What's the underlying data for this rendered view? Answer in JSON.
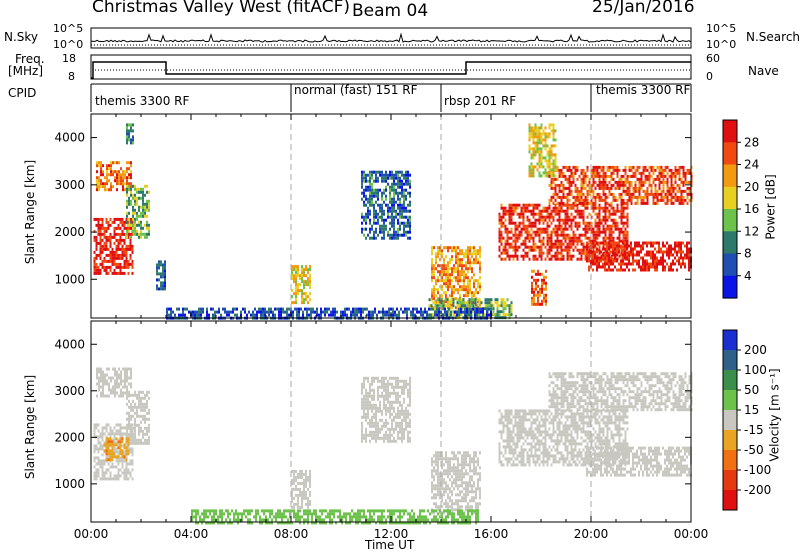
{
  "header": {
    "title": "Christmas Valley West (fitACF)",
    "beam": "Beam 04",
    "date": "25/Jan/2016"
  },
  "nsky": {
    "label": "N.Sky",
    "ticks": [
      "10^5",
      "10^0"
    ],
    "right_label": "N.Search",
    "right_ticks": [
      "10^5",
      "10^0"
    ]
  },
  "freq": {
    "label_line1": "Freq.",
    "label_line2": "[MHz]",
    "ticks": [
      "18",
      "8"
    ],
    "right_label": "Nave",
    "right_ticks": [
      "60",
      "0"
    ]
  },
  "cpid": {
    "label": "CPID",
    "segments": [
      {
        "name": "themis 3300 RF",
        "start_h": 0,
        "end_h": 8
      },
      {
        "name": "normal (fast) 151 RF",
        "start_h": 8,
        "end_h": 14
      },
      {
        "name": "rbsp 201 RF",
        "start_h": 14,
        "end_h": 20
      },
      {
        "name": "themis 3300 RF",
        "start_h": 20,
        "end_h": 24
      }
    ]
  },
  "chart_data": [
    {
      "type": "heatmap",
      "panel": "power",
      "ylabel": "Slant Range [km]",
      "yticks": [
        "1000",
        "2000",
        "3000",
        "4000"
      ],
      "ylim": [
        180,
        4500
      ],
      "xlim": [
        0,
        24
      ],
      "colorbar_label": "Power [dB]",
      "colorbar_ticks": [
        "4",
        "8",
        "12",
        "16",
        "20",
        "24",
        "28"
      ],
      "colorbar_range": [
        0,
        32
      ],
      "colors": [
        "#0a14e6",
        "#1f4fb0",
        "#2e7a6a",
        "#6cc24a",
        "#e8d021",
        "#f29a12",
        "#f04a10",
        "#e01010"
      ],
      "regions": [
        {
          "t0": 0.1,
          "t1": 1.7,
          "r0": 1100,
          "r1": 2300,
          "value": 30
        },
        {
          "t0": 0.2,
          "t1": 1.6,
          "r0": 2900,
          "r1": 3500,
          "value": 24
        },
        {
          "t0": 1.4,
          "t1": 2.3,
          "r0": 1900,
          "r1": 3000,
          "value": 14
        },
        {
          "t0": 1.4,
          "t1": 1.7,
          "r0": 3900,
          "r1": 4300,
          "value": 10
        },
        {
          "t0": 2.6,
          "t1": 3.0,
          "r0": 800,
          "r1": 1400,
          "value": 7
        },
        {
          "t0": 8.0,
          "t1": 8.8,
          "r0": 500,
          "r1": 1300,
          "value": 18
        },
        {
          "t0": 10.8,
          "t1": 12.8,
          "r0": 1900,
          "r1": 3300,
          "value": 7
        },
        {
          "t0": 13.6,
          "t1": 15.6,
          "r0": 400,
          "r1": 1700,
          "value": 22
        },
        {
          "t0": 13.5,
          "t1": 16.8,
          "r0": 200,
          "r1": 600,
          "value": 14
        },
        {
          "t0": 16.3,
          "t1": 21.5,
          "r0": 1400,
          "r1": 2600,
          "value": 29
        },
        {
          "t0": 19.8,
          "t1": 24.0,
          "r0": 1200,
          "r1": 1800,
          "value": 30
        },
        {
          "t0": 18.3,
          "t1": 24.0,
          "r0": 2600,
          "r1": 3400,
          "value": 27
        },
        {
          "t0": 17.5,
          "t1": 18.6,
          "r0": 3200,
          "r1": 4300,
          "value": 18
        },
        {
          "t0": 17.6,
          "t1": 18.2,
          "r0": 500,
          "r1": 1200,
          "value": 26
        },
        {
          "t0": 3.0,
          "t1": 16.0,
          "r0": 180,
          "r1": 400,
          "value": 6
        }
      ]
    },
    {
      "type": "heatmap",
      "panel": "velocity",
      "ylabel": "Slant Range [km]",
      "yticks": [
        "1000",
        "2000",
        "3000",
        "4000"
      ],
      "ylim": [
        180,
        4500
      ],
      "xlim": [
        0,
        24
      ],
      "xticks": [
        "00:00",
        "04:00",
        "08:00",
        "12:00",
        "16:00",
        "20:00",
        "00:00"
      ],
      "xlabel": "Time UT",
      "colorbar_label": "Velocity [m s⁻¹]",
      "colorbar_ticks": [
        "200",
        "100",
        "50",
        "15",
        "-15",
        "-50",
        "-100",
        "-200"
      ],
      "colors": [
        "#1a2fd0",
        "#2f5f8a",
        "#3c8f4a",
        "#6cc24a",
        "#c8c8c0",
        "#e8a521",
        "#f07012",
        "#e43a10",
        "#e01010"
      ],
      "regions": [
        {
          "t0": 0.1,
          "t1": 1.7,
          "r0": 1100,
          "r1": 2300,
          "value": 0
        },
        {
          "t0": 0.2,
          "t1": 1.6,
          "r0": 2900,
          "r1": 3500,
          "value": 0
        },
        {
          "t0": 1.4,
          "t1": 2.3,
          "r0": 1900,
          "r1": 3000,
          "value": 0
        },
        {
          "t0": 8.0,
          "t1": 8.8,
          "r0": 500,
          "r1": 1300,
          "value": 0
        },
        {
          "t0": 10.8,
          "t1": 12.8,
          "r0": 1900,
          "r1": 3300,
          "value": 0
        },
        {
          "t0": 13.6,
          "t1": 15.6,
          "r0": 400,
          "r1": 1700,
          "value": 0
        },
        {
          "t0": 16.3,
          "t1": 21.5,
          "r0": 1400,
          "r1": 2600,
          "value": 0
        },
        {
          "t0": 19.8,
          "t1": 24.0,
          "r0": 1200,
          "r1": 1800,
          "value": 0
        },
        {
          "t0": 18.3,
          "t1": 24.0,
          "r0": 2600,
          "r1": 3400,
          "value": 0
        },
        {
          "t0": 4.0,
          "t1": 15.5,
          "r0": 180,
          "r1": 450,
          "value": 30
        },
        {
          "t0": 0.5,
          "t1": 1.5,
          "r0": 1500,
          "r1": 2000,
          "value": -40
        }
      ]
    }
  ]
}
